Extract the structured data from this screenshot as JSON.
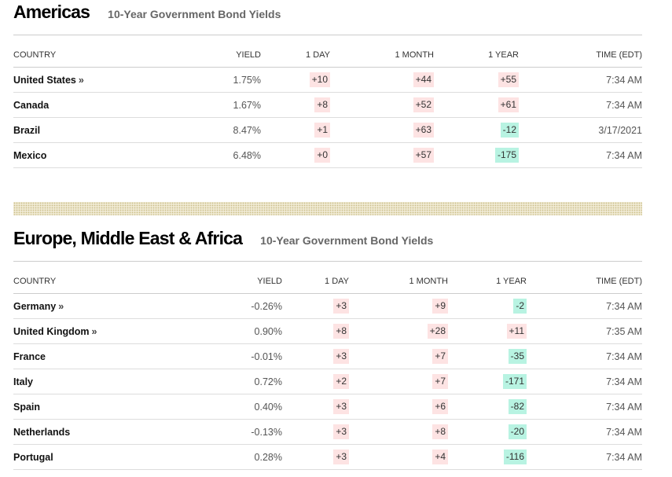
{
  "columns": {
    "country": "COUNTRY",
    "yield": "YIELD",
    "day": "1 DAY",
    "month": "1 MONTH",
    "year": "1 YEAR",
    "time": "TIME (EDT)"
  },
  "americas": {
    "title": "Americas",
    "subtitle": "10-Year Government Bond Yields",
    "rows": [
      {
        "country": "United States",
        "link": "»",
        "yield": "1.75%",
        "day": "+10",
        "month": "+44",
        "year": "+55",
        "time": "7:34 AM"
      },
      {
        "country": "Canada",
        "link": "",
        "yield": "1.67%",
        "day": "+8",
        "month": "+52",
        "year": "+61",
        "time": "7:34 AM"
      },
      {
        "country": "Brazil",
        "link": "",
        "yield": "8.47%",
        "day": "+1",
        "month": "+63",
        "year": "-12",
        "time": "3/17/2021"
      },
      {
        "country": "Mexico",
        "link": "",
        "yield": "6.48%",
        "day": "+0",
        "month": "+57",
        "year": "-175",
        "time": "7:34 AM"
      }
    ]
  },
  "emea": {
    "title": "Europe, Middle East & Africa",
    "subtitle": "10-Year Government Bond Yields",
    "rows": [
      {
        "country": "Germany",
        "link": "»",
        "yield": "-0.26%",
        "day": "+3",
        "month": "+9",
        "year": "-2",
        "time": "7:34 AM"
      },
      {
        "country": "United Kingdom",
        "link": "»",
        "yield": "0.90%",
        "day": "+8",
        "month": "+28",
        "year": "+11",
        "time": "7:35 AM"
      },
      {
        "country": "France",
        "link": "",
        "yield": "-0.01%",
        "day": "+3",
        "month": "+7",
        "year": "-35",
        "time": "7:34 AM"
      },
      {
        "country": "Italy",
        "link": "",
        "yield": "0.72%",
        "day": "+2",
        "month": "+7",
        "year": "-171",
        "time": "7:34 AM"
      },
      {
        "country": "Spain",
        "link": "",
        "yield": "0.40%",
        "day": "+3",
        "month": "+6",
        "year": "-82",
        "time": "7:34 AM"
      },
      {
        "country": "Netherlands",
        "link": "",
        "yield": "-0.13%",
        "day": "+3",
        "month": "+8",
        "year": "-20",
        "time": "7:34 AM"
      },
      {
        "country": "Portugal",
        "link": "",
        "yield": "0.28%",
        "day": "+3",
        "month": "+4",
        "year": "-116",
        "time": "7:34 AM"
      }
    ]
  }
}
